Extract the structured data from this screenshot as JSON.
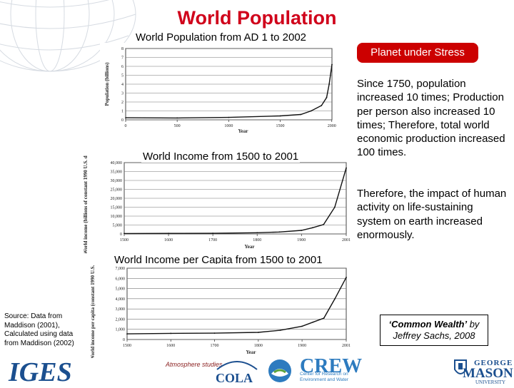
{
  "title": "World Population",
  "charts": {
    "pop_title": "World Population from AD 1 to 2002",
    "income_title": "World Income from 1500 to 2001",
    "capita_title": "World Income per Capita from 1500 to 2001"
  },
  "chart_data": [
    {
      "type": "line",
      "title": "World Population from AD 1 to 2002",
      "xlabel": "Year",
      "ylabel": "Population (billions)",
      "xlim": [
        0,
        2002
      ],
      "ylim": [
        0,
        8
      ],
      "x_ticks": [
        "0",
        "500",
        "1000",
        "1500",
        "2000"
      ],
      "y_ticks": [
        "0",
        "1",
        "2",
        "3",
        "4",
        "5",
        "6",
        "7",
        "8"
      ],
      "x": [
        1,
        500,
        1000,
        1500,
        1700,
        1800,
        1900,
        1950,
        1975,
        2002
      ],
      "y": [
        0.23,
        0.21,
        0.27,
        0.44,
        0.6,
        1.0,
        1.6,
        2.5,
        4.0,
        6.2
      ]
    },
    {
      "type": "line",
      "title": "World Income from 1500 to 2001",
      "xlabel": "Year",
      "ylabel": "World income (billions of constant 1990 U.S. dollars)",
      "xlim": [
        1500,
        2001
      ],
      "ylim": [
        0,
        40000
      ],
      "x_ticks": [
        "1500",
        "1600",
        "1700",
        "1800",
        "1900",
        "2001"
      ],
      "y_ticks": [
        "0",
        "5,000",
        "10,000",
        "15,000",
        "20,000",
        "25,000",
        "30,000",
        "35,000",
        "40,000"
      ],
      "x": [
        1500,
        1600,
        1700,
        1800,
        1850,
        1900,
        1925,
        1950,
        1975,
        2001
      ],
      "y": [
        250,
        330,
        370,
        700,
        1100,
        2000,
        3500,
        5300,
        15000,
        37000
      ]
    },
    {
      "type": "line",
      "title": "World Income per Capita from 1500 to 2001",
      "xlabel": "Year",
      "ylabel": "World income per capita (constant 1990 U.S. dollars)",
      "xlim": [
        1500,
        2001
      ],
      "ylim": [
        0,
        7000
      ],
      "x_ticks": [
        "1500",
        "1600",
        "1700",
        "1800",
        "1900",
        "2001"
      ],
      "y_ticks": [
        "0",
        "1,000",
        "2,000",
        "3,000",
        "4,000",
        "5,000",
        "6,000",
        "7,000"
      ],
      "x": [
        1500,
        1600,
        1700,
        1800,
        1850,
        1900,
        1925,
        1950,
        1975,
        2001
      ],
      "y": [
        550,
        600,
        620,
        700,
        900,
        1300,
        1700,
        2100,
        4000,
        6100
      ]
    }
  ],
  "badge": "Planet under Stress",
  "para1": "Since 1750, population increased 10 times; Production per person also increased 10 times; Therefore, total world economic production increased 100 times.",
  "para2": "Therefore, the impact of human activity on life-sustaining system on earth increased enormously.",
  "source": "Source: Data from Maddison (2001), Calculated using data from Maddison (2002)",
  "quote": {
    "title": "‘Common Wealth’",
    "rest": " by Jeffrey Sachs, 2008"
  },
  "logos": {
    "iges": "IGES",
    "atmo": "Atmosphere studies",
    "cola": "COLA",
    "crew": "CREW",
    "crew_sub": "Center for Research on Environment and Water",
    "gmu_top": "GEORGE",
    "gmu_mid": "MASON",
    "gmu_bot": "UNIVERSITY"
  },
  "colors": {
    "title": "#d0021b",
    "badge": "#cc0000",
    "logo_blue": "#1b4f8f"
  }
}
